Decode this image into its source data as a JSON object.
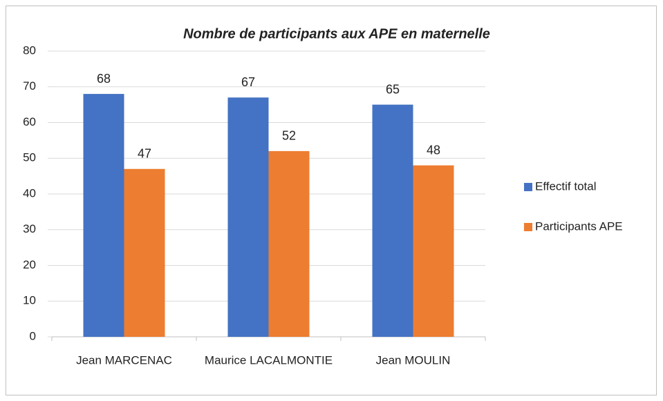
{
  "chart_data": {
    "type": "bar",
    "title": "Nombre de participants aux APE en maternelle",
    "categories": [
      "Jean MARCENAC",
      "Maurice LACALMONTIE",
      "Jean MOULIN"
    ],
    "series": [
      {
        "name": "Effectif total",
        "color": "#4472c4",
        "values": [
          68,
          67,
          65
        ]
      },
      {
        "name": "Participants APE",
        "color": "#ed7d31",
        "values": [
          47,
          52,
          48
        ]
      }
    ],
    "ylim": [
      0,
      80
    ],
    "yticks": [
      0,
      10,
      20,
      30,
      40,
      50,
      60,
      70,
      80
    ],
    "grid": true,
    "legend": "right"
  }
}
